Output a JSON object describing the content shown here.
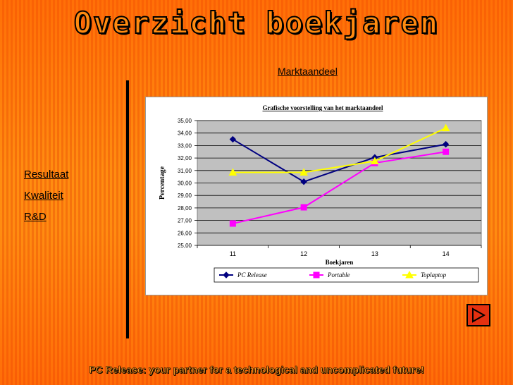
{
  "header": {
    "title": "Overzicht boekjaren"
  },
  "topic_link": "Marktaandeel",
  "nav": [
    "Resultaat",
    "Kwaliteit",
    "R&D"
  ],
  "footer": "PC Release: your partner for a technological and uncomplicated future!",
  "chart_data": {
    "type": "line",
    "title": "Grafische voorstelling van het marktaandeel",
    "xlabel": "Boekjaren",
    "ylabel": "Percentage",
    "categories": [
      "11",
      "12",
      "13",
      "14"
    ],
    "ylim": [
      25,
      35
    ],
    "yticks": [
      "25,00",
      "26,00",
      "27,00",
      "28,00",
      "29,00",
      "30,00",
      "31,00",
      "32,00",
      "33,00",
      "34,00",
      "35,00"
    ],
    "grid": true,
    "legend_position": "bottom",
    "series": [
      {
        "name": "PC Release",
        "values": [
          33.5,
          30.1,
          32.05,
          33.1
        ],
        "color": "#000080",
        "marker": "diamond"
      },
      {
        "name": "Portable",
        "values": [
          26.75,
          28.05,
          31.6,
          32.5
        ],
        "color": "#ff00ff",
        "marker": "square"
      },
      {
        "name": "Toplaptop",
        "values": [
          30.85,
          30.85,
          31.75,
          34.4
        ],
        "color": "#ffff00",
        "marker": "triangle"
      }
    ]
  },
  "colors": {
    "background": "#ff8a10",
    "plot_area": "#c0c0c0",
    "button": "#e53010"
  },
  "icons": {
    "next": "play-triangle-icon"
  }
}
